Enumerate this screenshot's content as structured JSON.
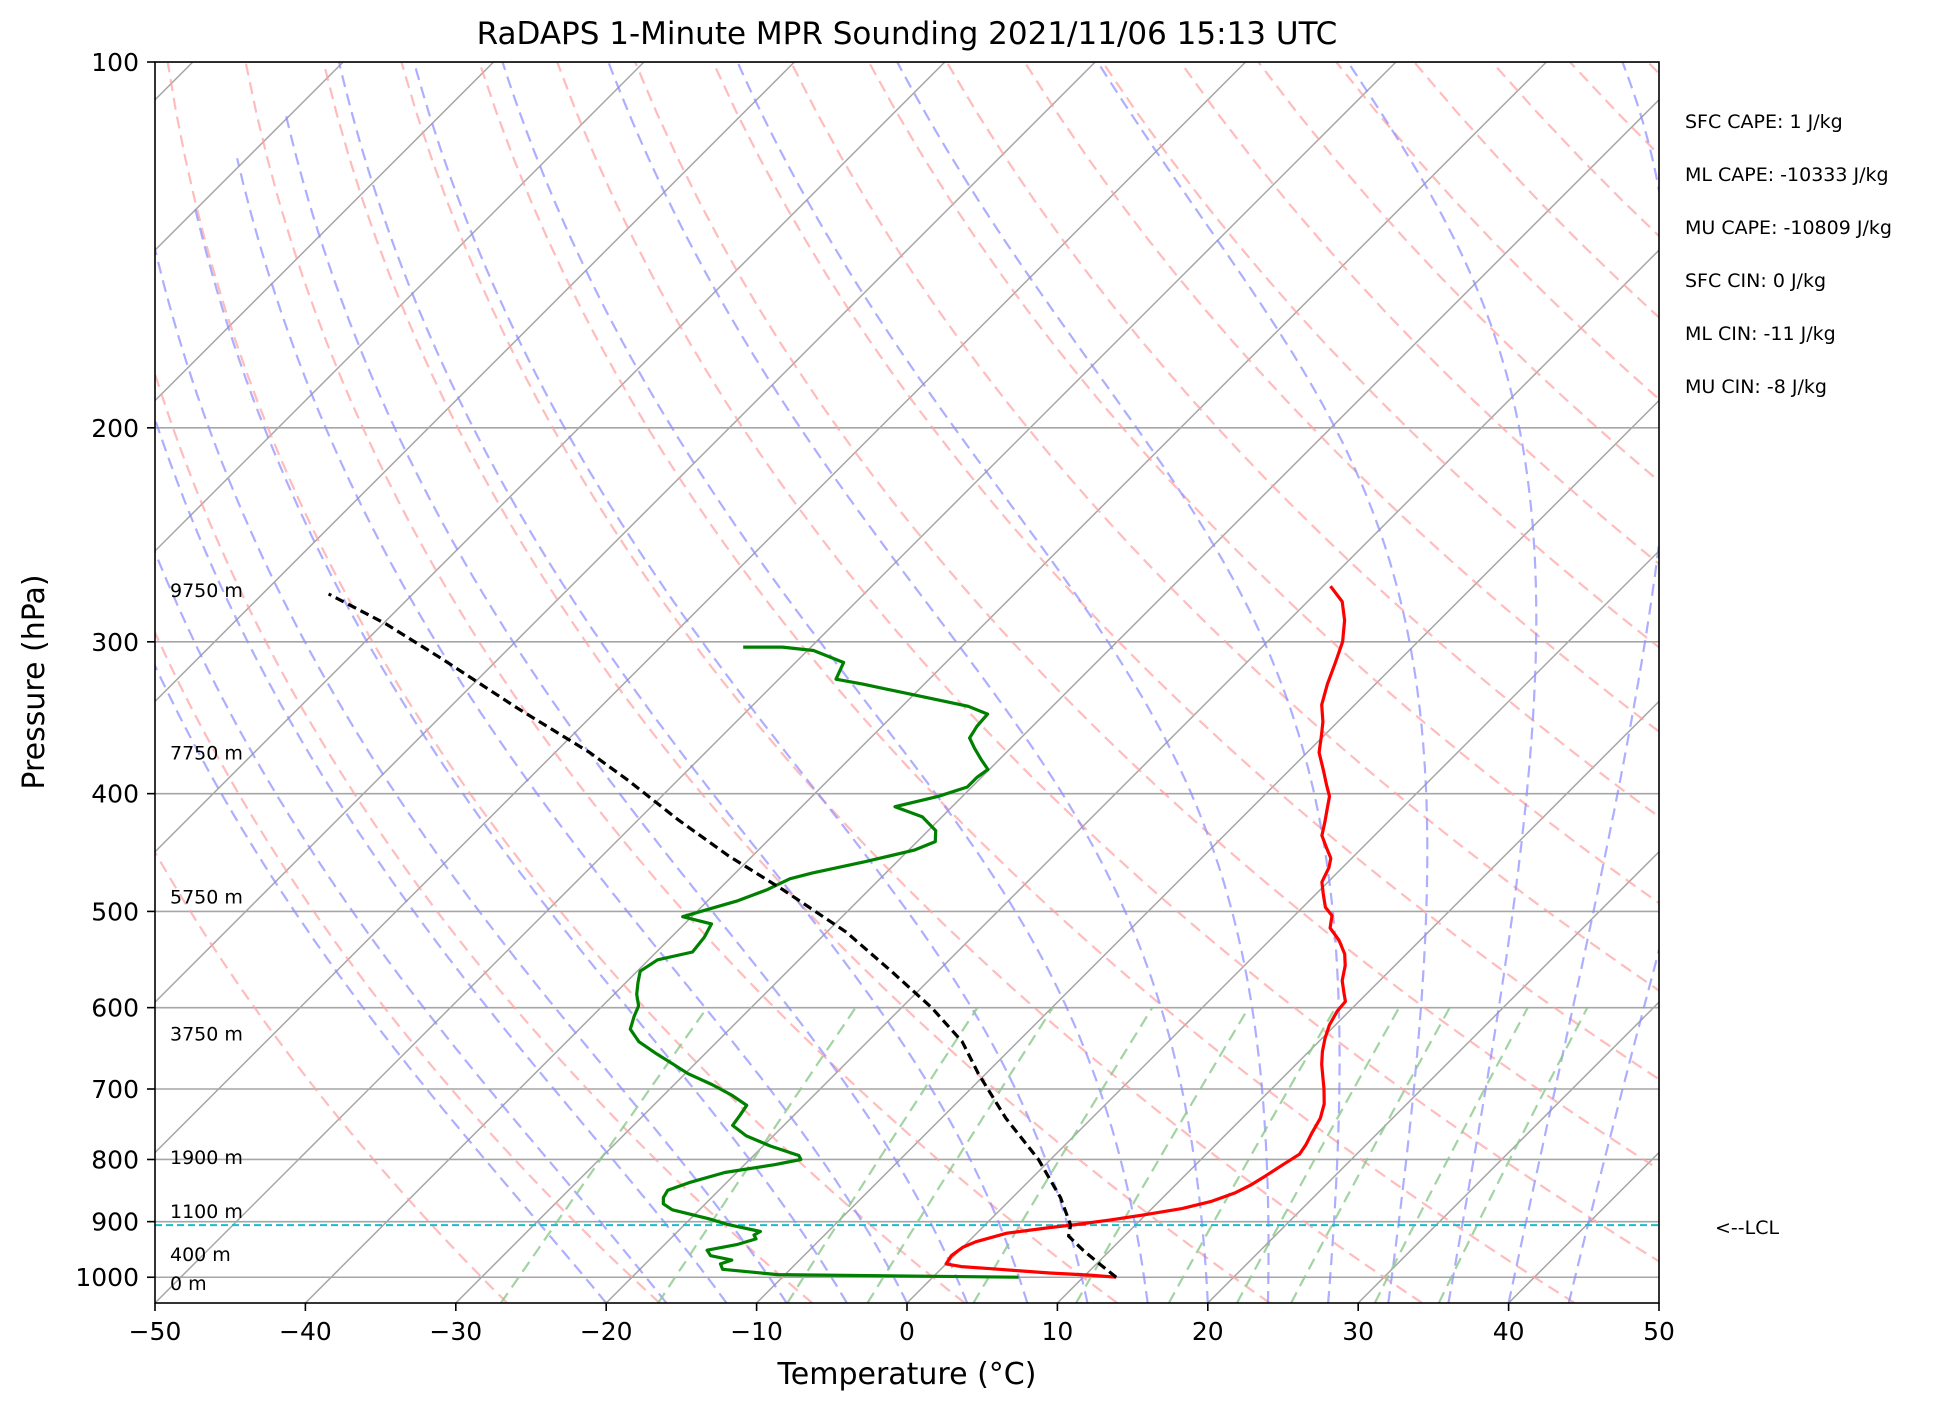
{
  "chart_data": {
    "type": "line",
    "title": "RaDAPS 1-Minute MPR Sounding 2021/11/06 15:13 UTC",
    "xlabel": "Temperature (°C)",
    "ylabel": "Pressure (hPa)",
    "xlim": [
      -50,
      50
    ],
    "ylim": [
      1050,
      100
    ],
    "y_scale": "log",
    "x_ticks": [
      -50,
      -40,
      -30,
      -20,
      -10,
      0,
      10,
      20,
      30,
      40,
      50
    ],
    "x_tick_labels": [
      "−50",
      "−40",
      "−30",
      "−20",
      "−10",
      "0",
      "10",
      "20",
      "30",
      "40",
      "50"
    ],
    "y_ticks": [
      100,
      200,
      300,
      400,
      500,
      600,
      700,
      800,
      900,
      1000
    ],
    "y_tick_labels": [
      "100",
      "200",
      "300",
      "400",
      "500",
      "600",
      "700",
      "800",
      "900",
      "1000"
    ],
    "skew_degrees": 45,
    "grid": true,
    "colors": {
      "temperature": "#ff0000",
      "dewpoint": "#008000",
      "parcel": "#000000",
      "isotherm": "#a6a6a6",
      "dry_adiabat": "#ff9f9f",
      "moist_adiabat": "#8c8cff",
      "mixing_ratio": "#8bc88b",
      "lcl": "#17becf"
    },
    "series": [
      {
        "key": "temperature",
        "points": [
          [
            12.2,
            1000
          ],
          [
            10.3,
            996
          ],
          [
            7.5,
            992
          ],
          [
            5.4,
            988
          ],
          [
            3.3,
            984
          ],
          [
            1.2,
            980
          ],
          [
            0,
            975
          ],
          [
            -0.2,
            960
          ],
          [
            0,
            945
          ],
          [
            0.5,
            935
          ],
          [
            2,
            920
          ],
          [
            4.5,
            910
          ],
          [
            6,
            905
          ],
          [
            8,
            897
          ],
          [
            10,
            888
          ],
          [
            12,
            878
          ],
          [
            13.5,
            866
          ],
          [
            14.5,
            852
          ],
          [
            15,
            840
          ],
          [
            15.4,
            825
          ],
          [
            15.8,
            808
          ],
          [
            16.2,
            792
          ],
          [
            16,
            778
          ],
          [
            15.6,
            760
          ],
          [
            15.2,
            740
          ],
          [
            14.5,
            720
          ],
          [
            13.5,
            700
          ],
          [
            12.5,
            682
          ],
          [
            11.7,
            668
          ],
          [
            10.9,
            652
          ],
          [
            10.2,
            636
          ],
          [
            9.6,
            620
          ],
          [
            9.2,
            604
          ],
          [
            9.1,
            593
          ],
          [
            8.4,
            583
          ],
          [
            7.5,
            570
          ],
          [
            6.7,
            554
          ],
          [
            5.9,
            542
          ],
          [
            4.6,
            528
          ],
          [
            3.2,
            516
          ],
          [
            2.5,
            504
          ],
          [
            1.5,
            496
          ],
          [
            0.5,
            484
          ],
          [
            -0.4,
            473
          ],
          [
            -0.9,
            460
          ],
          [
            -1.4,
            452
          ],
          [
            -2.4,
            443
          ],
          [
            -3.5,
            433
          ],
          [
            -4.2,
            422
          ],
          [
            -4.9,
            412
          ],
          [
            -5.6,
            402
          ],
          [
            -6.6,
            393
          ],
          [
            -7.7,
            383
          ],
          [
            -9.2,
            370
          ],
          [
            -10.2,
            358
          ],
          [
            -11,
            349
          ],
          [
            -12.2,
            338
          ],
          [
            -13.2,
            325
          ],
          [
            -14.1,
            312
          ],
          [
            -15,
            300
          ],
          [
            -16.3,
            288
          ],
          [
            -17.7,
            278
          ],
          [
            -19.5,
            270
          ]
        ]
      },
      {
        "key": "dewpoint",
        "points": [
          [
            5.7,
            1000
          ],
          [
            -10.5,
            995
          ],
          [
            -14.5,
            985
          ],
          [
            -15,
            975
          ],
          [
            -14.5,
            968
          ],
          [
            -16.2,
            960
          ],
          [
            -16.8,
            950
          ],
          [
            -15.2,
            940
          ],
          [
            -14.3,
            930
          ],
          [
            -14.7,
            923
          ],
          [
            -14.5,
            917
          ],
          [
            -17.1,
            905
          ],
          [
            -18.8,
            895
          ],
          [
            -21.8,
            880
          ],
          [
            -22.8,
            870
          ],
          [
            -23.2,
            860
          ],
          [
            -23.4,
            848
          ],
          [
            -22.5,
            836
          ],
          [
            -20.8,
            820
          ],
          [
            -18,
            808
          ],
          [
            -16.6,
            800
          ],
          [
            -17,
            794
          ],
          [
            -19.5,
            780
          ],
          [
            -21.8,
            765
          ],
          [
            -23.4,
            750
          ],
          [
            -23.6,
            735
          ],
          [
            -23.8,
            722
          ],
          [
            -25.5,
            708
          ],
          [
            -27.5,
            694
          ],
          [
            -29.8,
            680
          ],
          [
            -31.4,
            668
          ],
          [
            -33.2,
            655
          ],
          [
            -35.2,
            640
          ],
          [
            -36.6,
            625
          ],
          [
            -37.2,
            610
          ],
          [
            -37.6,
            598
          ],
          [
            -38.5,
            585
          ],
          [
            -39.2,
            572
          ],
          [
            -39.8,
            560
          ],
          [
            -39.4,
            548
          ],
          [
            -37.6,
            540
          ],
          [
            -37.8,
            525
          ],
          [
            -38.2,
            512
          ],
          [
            -40.6,
            505
          ],
          [
            -39.4,
            498
          ],
          [
            -38,
            490
          ],
          [
            -36.8,
            480
          ],
          [
            -36,
            470
          ],
          [
            -34.9,
            465
          ],
          [
            -32.1,
            455
          ],
          [
            -29.6,
            445
          ],
          [
            -28.8,
            438
          ],
          [
            -29.5,
            429
          ],
          [
            -31.3,
            418
          ],
          [
            -33.8,
            410
          ],
          [
            -31.6,
            402
          ],
          [
            -30.3,
            395
          ],
          [
            -30.3,
            388
          ],
          [
            -30.1,
            382
          ],
          [
            -31.2,
            375
          ],
          [
            -32.4,
            367
          ],
          [
            -33.4,
            360
          ],
          [
            -33.7,
            352
          ],
          [
            -33.8,
            344
          ],
          [
            -35.6,
            339
          ],
          [
            -39.8,
            332
          ],
          [
            -44.1,
            325
          ],
          [
            -46.2,
            322
          ],
          [
            -46.8,
            312
          ],
          [
            -49.6,
            305
          ],
          [
            -51.9,
            303
          ],
          [
            -54.5,
            303
          ]
        ]
      },
      {
        "key": "parcel",
        "points": [
          [
            12.2,
            1000
          ],
          [
            10.2,
            975
          ],
          [
            8.2,
            950
          ],
          [
            6.3,
            925
          ],
          [
            5.7,
            906
          ],
          [
            3.2,
            860
          ],
          [
            -0.8,
            800
          ],
          [
            -5.7,
            740
          ],
          [
            -10.5,
            680
          ],
          [
            -13.7,
            640
          ],
          [
            -18,
            600
          ],
          [
            -23.1,
            560
          ],
          [
            -28.7,
            520
          ],
          [
            -35.7,
            480
          ],
          [
            -41.6,
            450
          ],
          [
            -47.4,
            420
          ],
          [
            -53.3,
            390
          ],
          [
            -57.7,
            370
          ],
          [
            -65.5,
            340
          ],
          [
            -73.7,
            310
          ],
          [
            -79.8,
            290
          ],
          [
            -85.6,
            274
          ]
        ]
      }
    ],
    "lcl_pressure": 906,
    "lcl_label": "<--LCL",
    "height_labels": [
      {
        "text": "9750 m",
        "p": 272
      },
      {
        "text": "7750 m",
        "p": 370
      },
      {
        "text": "5750 m",
        "p": 486
      },
      {
        "text": "3750 m",
        "p": 630
      },
      {
        "text": "1900 m",
        "p": 796
      },
      {
        "text": "1100 m",
        "p": 882
      },
      {
        "text": "400 m",
        "p": 957
      },
      {
        "text": "0 m",
        "p": 1011
      }
    ],
    "stats": [
      "SFC CAPE: 1 J/kg",
      "ML CAPE: -10333 J/kg",
      "MU CAPE: -10809 J/kg",
      "SFC CIN: 0 J/kg",
      "ML CIN: -11 J/kg",
      "MU CIN: -8 J/kg"
    ]
  }
}
